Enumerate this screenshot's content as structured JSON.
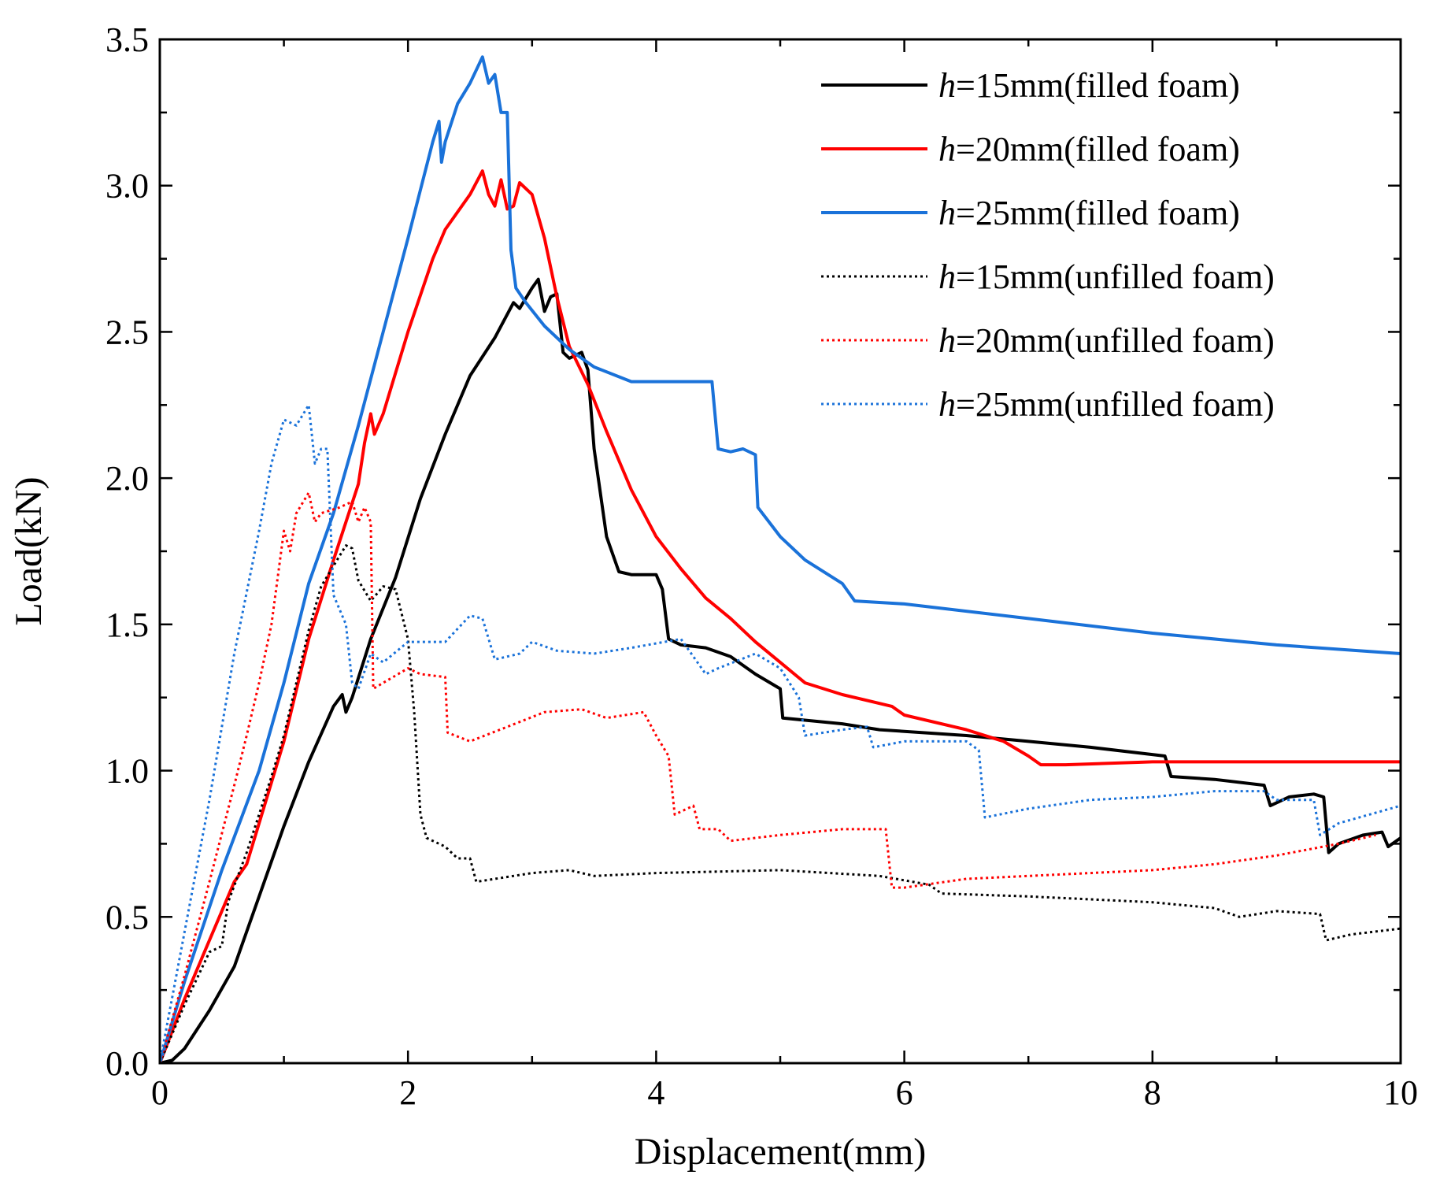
{
  "chart_data": {
    "type": "line",
    "xlabel": "Displacement(mm)",
    "ylabel": "Load(kN)",
    "xlim": [
      0,
      10
    ],
    "ylim": [
      0,
      3.5
    ],
    "xticks": [
      "0",
      "2",
      "4",
      "6",
      "8",
      "10"
    ],
    "yticks": [
      "0.0",
      "0.5",
      "1.0",
      "1.5",
      "2.0",
      "2.5",
      "3.0",
      "3.5"
    ],
    "grid": false,
    "legend_position": "top-right",
    "series": [
      {
        "name": "h=15mm(filled foam)",
        "legend_italic": "h",
        "legend_rest": "=15mm(filled foam)",
        "color": "#000000",
        "style": "solid",
        "points": [
          [
            0,
            0
          ],
          [
            0.1,
            0.01
          ],
          [
            0.2,
            0.05
          ],
          [
            0.4,
            0.18
          ],
          [
            0.6,
            0.33
          ],
          [
            0.8,
            0.57
          ],
          [
            1.0,
            0.81
          ],
          [
            1.2,
            1.03
          ],
          [
            1.4,
            1.22
          ],
          [
            1.47,
            1.26
          ],
          [
            1.5,
            1.2
          ],
          [
            1.55,
            1.25
          ],
          [
            1.7,
            1.45
          ],
          [
            1.9,
            1.66
          ],
          [
            2.1,
            1.93
          ],
          [
            2.3,
            2.15
          ],
          [
            2.5,
            2.35
          ],
          [
            2.7,
            2.48
          ],
          [
            2.85,
            2.6
          ],
          [
            2.9,
            2.58
          ],
          [
            3.0,
            2.65
          ],
          [
            3.05,
            2.68
          ],
          [
            3.1,
            2.57
          ],
          [
            3.15,
            2.62
          ],
          [
            3.2,
            2.63
          ],
          [
            3.25,
            2.43
          ],
          [
            3.3,
            2.41
          ],
          [
            3.4,
            2.43
          ],
          [
            3.45,
            2.37
          ],
          [
            3.5,
            2.1
          ],
          [
            3.6,
            1.8
          ],
          [
            3.7,
            1.68
          ],
          [
            3.8,
            1.67
          ],
          [
            4.0,
            1.67
          ],
          [
            4.05,
            1.62
          ],
          [
            4.1,
            1.45
          ],
          [
            4.2,
            1.43
          ],
          [
            4.4,
            1.42
          ],
          [
            4.6,
            1.39
          ],
          [
            4.8,
            1.33
          ],
          [
            5.0,
            1.28
          ],
          [
            5.02,
            1.18
          ],
          [
            5.5,
            1.16
          ],
          [
            5.8,
            1.14
          ],
          [
            6.5,
            1.12
          ],
          [
            7.0,
            1.1
          ],
          [
            7.5,
            1.08
          ],
          [
            8.1,
            1.05
          ],
          [
            8.15,
            0.98
          ],
          [
            8.5,
            0.97
          ],
          [
            8.9,
            0.95
          ],
          [
            8.95,
            0.88
          ],
          [
            9.1,
            0.91
          ],
          [
            9.3,
            0.92
          ],
          [
            9.38,
            0.91
          ],
          [
            9.42,
            0.72
          ],
          [
            9.5,
            0.75
          ],
          [
            9.7,
            0.78
          ],
          [
            9.85,
            0.79
          ],
          [
            9.9,
            0.74
          ],
          [
            10.0,
            0.77
          ]
        ]
      },
      {
        "name": "h=20mm(filled foam)",
        "legend_italic": "h",
        "legend_rest": "=20mm(filled foam)",
        "color": "#ff0000",
        "style": "solid",
        "points": [
          [
            0,
            0
          ],
          [
            0.2,
            0.22
          ],
          [
            0.4,
            0.42
          ],
          [
            0.6,
            0.62
          ],
          [
            0.7,
            0.68
          ],
          [
            0.8,
            0.82
          ],
          [
            1.0,
            1.1
          ],
          [
            1.2,
            1.45
          ],
          [
            1.4,
            1.72
          ],
          [
            1.6,
            1.98
          ],
          [
            1.65,
            2.12
          ],
          [
            1.7,
            2.22
          ],
          [
            1.73,
            2.15
          ],
          [
            1.8,
            2.22
          ],
          [
            2.0,
            2.5
          ],
          [
            2.2,
            2.75
          ],
          [
            2.3,
            2.85
          ],
          [
            2.5,
            2.97
          ],
          [
            2.6,
            3.05
          ],
          [
            2.65,
            2.97
          ],
          [
            2.7,
            2.93
          ],
          [
            2.75,
            3.02
          ],
          [
            2.8,
            2.92
          ],
          [
            2.85,
            2.93
          ],
          [
            2.9,
            3.01
          ],
          [
            3.0,
            2.97
          ],
          [
            3.1,
            2.82
          ],
          [
            3.2,
            2.62
          ],
          [
            3.3,
            2.45
          ],
          [
            3.45,
            2.32
          ],
          [
            3.6,
            2.16
          ],
          [
            3.8,
            1.96
          ],
          [
            4.0,
            1.8
          ],
          [
            4.2,
            1.69
          ],
          [
            4.4,
            1.59
          ],
          [
            4.6,
            1.52
          ],
          [
            4.8,
            1.44
          ],
          [
            5.0,
            1.37
          ],
          [
            5.2,
            1.3
          ],
          [
            5.5,
            1.26
          ],
          [
            5.9,
            1.22
          ],
          [
            6.0,
            1.19
          ],
          [
            6.5,
            1.14
          ],
          [
            6.8,
            1.1
          ],
          [
            7.0,
            1.05
          ],
          [
            7.1,
            1.02
          ],
          [
            7.3,
            1.02
          ],
          [
            8.0,
            1.03
          ],
          [
            10.0,
            1.03
          ]
        ]
      },
      {
        "name": "h=25mm(filled foam)",
        "legend_italic": "h",
        "legend_rest": "=25mm(filled foam)",
        "color": "#1a72d9",
        "style": "solid",
        "points": [
          [
            0,
            0
          ],
          [
            0.2,
            0.28
          ],
          [
            0.5,
            0.66
          ],
          [
            0.8,
            1.0
          ],
          [
            1.0,
            1.3
          ],
          [
            1.2,
            1.64
          ],
          [
            1.4,
            1.88
          ],
          [
            1.6,
            2.18
          ],
          [
            1.8,
            2.5
          ],
          [
            2.0,
            2.82
          ],
          [
            2.2,
            3.15
          ],
          [
            2.25,
            3.22
          ],
          [
            2.27,
            3.08
          ],
          [
            2.3,
            3.15
          ],
          [
            2.4,
            3.28
          ],
          [
            2.5,
            3.35
          ],
          [
            2.6,
            3.44
          ],
          [
            2.65,
            3.35
          ],
          [
            2.7,
            3.38
          ],
          [
            2.75,
            3.25
          ],
          [
            2.8,
            3.25
          ],
          [
            2.83,
            2.78
          ],
          [
            2.87,
            2.65
          ],
          [
            2.95,
            2.6
          ],
          [
            3.1,
            2.52
          ],
          [
            3.3,
            2.44
          ],
          [
            3.5,
            2.38
          ],
          [
            3.8,
            2.33
          ],
          [
            4.0,
            2.33
          ],
          [
            4.45,
            2.33
          ],
          [
            4.5,
            2.1
          ],
          [
            4.6,
            2.09
          ],
          [
            4.7,
            2.1
          ],
          [
            4.8,
            2.08
          ],
          [
            4.82,
            1.9
          ],
          [
            5.0,
            1.8
          ],
          [
            5.2,
            1.72
          ],
          [
            5.5,
            1.64
          ],
          [
            5.6,
            1.58
          ],
          [
            6.0,
            1.57
          ],
          [
            7.0,
            1.52
          ],
          [
            8.0,
            1.47
          ],
          [
            9.0,
            1.43
          ],
          [
            10.0,
            1.4
          ]
        ]
      },
      {
        "name": "h=15mm(unfilled foam)",
        "legend_italic": "h",
        "legend_rest": "=15mm(unfilled foam)",
        "color": "#000000",
        "style": "dotted",
        "points": [
          [
            0,
            0
          ],
          [
            0.2,
            0.2
          ],
          [
            0.4,
            0.38
          ],
          [
            0.5,
            0.4
          ],
          [
            0.55,
            0.55
          ],
          [
            0.7,
            0.72
          ],
          [
            0.9,
            0.98
          ],
          [
            1.0,
            1.12
          ],
          [
            1.1,
            1.3
          ],
          [
            1.2,
            1.48
          ],
          [
            1.3,
            1.63
          ],
          [
            1.4,
            1.7
          ],
          [
            1.5,
            1.77
          ],
          [
            1.55,
            1.76
          ],
          [
            1.6,
            1.65
          ],
          [
            1.7,
            1.58
          ],
          [
            1.8,
            1.63
          ],
          [
            1.9,
            1.62
          ],
          [
            2.0,
            1.45
          ],
          [
            2.05,
            1.2
          ],
          [
            2.1,
            0.85
          ],
          [
            2.15,
            0.77
          ],
          [
            2.3,
            0.74
          ],
          [
            2.4,
            0.7
          ],
          [
            2.5,
            0.7
          ],
          [
            2.55,
            0.62
          ],
          [
            2.7,
            0.63
          ],
          [
            3.0,
            0.65
          ],
          [
            3.3,
            0.66
          ],
          [
            3.5,
            0.64
          ],
          [
            4.0,
            0.65
          ],
          [
            5.0,
            0.66
          ],
          [
            5.8,
            0.64
          ],
          [
            6.2,
            0.61
          ],
          [
            6.3,
            0.58
          ],
          [
            7.0,
            0.57
          ],
          [
            7.5,
            0.56
          ],
          [
            8.0,
            0.55
          ],
          [
            8.5,
            0.53
          ],
          [
            8.7,
            0.5
          ],
          [
            9.0,
            0.52
          ],
          [
            9.35,
            0.51
          ],
          [
            9.4,
            0.42
          ],
          [
            9.6,
            0.44
          ],
          [
            10.0,
            0.46
          ]
        ]
      },
      {
        "name": "h=20mm(unfilled foam)",
        "legend_italic": "h",
        "legend_rest": "=20mm(unfilled foam)",
        "color": "#ff0000",
        "style": "dotted",
        "points": [
          [
            0,
            0
          ],
          [
            0.2,
            0.3
          ],
          [
            0.4,
            0.62
          ],
          [
            0.6,
            0.95
          ],
          [
            0.7,
            1.12
          ],
          [
            0.8,
            1.3
          ],
          [
            0.9,
            1.5
          ],
          [
            1.0,
            1.82
          ],
          [
            1.05,
            1.75
          ],
          [
            1.1,
            1.88
          ],
          [
            1.2,
            1.95
          ],
          [
            1.25,
            1.85
          ],
          [
            1.3,
            1.88
          ],
          [
            1.45,
            1.9
          ],
          [
            1.55,
            1.92
          ],
          [
            1.6,
            1.85
          ],
          [
            1.65,
            1.9
          ],
          [
            1.7,
            1.85
          ],
          [
            1.72,
            1.28
          ],
          [
            1.8,
            1.3
          ],
          [
            2.0,
            1.35
          ],
          [
            2.1,
            1.33
          ],
          [
            2.3,
            1.32
          ],
          [
            2.32,
            1.13
          ],
          [
            2.5,
            1.1
          ],
          [
            2.8,
            1.15
          ],
          [
            3.1,
            1.2
          ],
          [
            3.4,
            1.21
          ],
          [
            3.6,
            1.18
          ],
          [
            3.9,
            1.2
          ],
          [
            4.0,
            1.12
          ],
          [
            4.1,
            1.05
          ],
          [
            4.15,
            0.85
          ],
          [
            4.3,
            0.88
          ],
          [
            4.35,
            0.8
          ],
          [
            4.5,
            0.8
          ],
          [
            4.6,
            0.76
          ],
          [
            5.0,
            0.78
          ],
          [
            5.5,
            0.8
          ],
          [
            5.85,
            0.8
          ],
          [
            5.9,
            0.6
          ],
          [
            6.0,
            0.6
          ],
          [
            6.5,
            0.63
          ],
          [
            7.0,
            0.64
          ],
          [
            7.5,
            0.65
          ],
          [
            8.0,
            0.66
          ],
          [
            8.5,
            0.68
          ],
          [
            9.0,
            0.71
          ],
          [
            9.5,
            0.75
          ],
          [
            9.8,
            0.78
          ]
        ]
      },
      {
        "name": "h=25mm(unfilled foam)",
        "legend_italic": "h",
        "legend_rest": "=25mm(unfilled foam)",
        "color": "#1a72d9",
        "style": "dotted",
        "points": [
          [
            0,
            0
          ],
          [
            0.2,
            0.45
          ],
          [
            0.4,
            0.9
          ],
          [
            0.6,
            1.4
          ],
          [
            0.8,
            1.82
          ],
          [
            0.9,
            2.05
          ],
          [
            1.0,
            2.2
          ],
          [
            1.1,
            2.18
          ],
          [
            1.2,
            2.25
          ],
          [
            1.25,
            2.05
          ],
          [
            1.3,
            2.1
          ],
          [
            1.35,
            2.1
          ],
          [
            1.4,
            1.6
          ],
          [
            1.5,
            1.5
          ],
          [
            1.55,
            1.3
          ],
          [
            1.6,
            1.28
          ],
          [
            1.7,
            1.4
          ],
          [
            1.8,
            1.37
          ],
          [
            2.0,
            1.44
          ],
          [
            2.3,
            1.44
          ],
          [
            2.5,
            1.53
          ],
          [
            2.6,
            1.52
          ],
          [
            2.7,
            1.38
          ],
          [
            2.9,
            1.4
          ],
          [
            3.0,
            1.44
          ],
          [
            3.2,
            1.41
          ],
          [
            3.5,
            1.4
          ],
          [
            3.8,
            1.42
          ],
          [
            4.2,
            1.45
          ],
          [
            4.4,
            1.33
          ],
          [
            4.5,
            1.35
          ],
          [
            4.8,
            1.4
          ],
          [
            5.0,
            1.35
          ],
          [
            5.15,
            1.25
          ],
          [
            5.2,
            1.12
          ],
          [
            5.5,
            1.14
          ],
          [
            5.7,
            1.15
          ],
          [
            5.75,
            1.08
          ],
          [
            6.0,
            1.1
          ],
          [
            6.5,
            1.1
          ],
          [
            6.6,
            1.07
          ],
          [
            6.65,
            0.84
          ],
          [
            7.0,
            0.87
          ],
          [
            7.5,
            0.9
          ],
          [
            8.0,
            0.91
          ],
          [
            8.5,
            0.93
          ],
          [
            8.9,
            0.93
          ],
          [
            9.0,
            0.9
          ],
          [
            9.3,
            0.9
          ],
          [
            9.35,
            0.78
          ],
          [
            9.5,
            0.82
          ],
          [
            10.0,
            0.88
          ]
        ]
      }
    ]
  }
}
